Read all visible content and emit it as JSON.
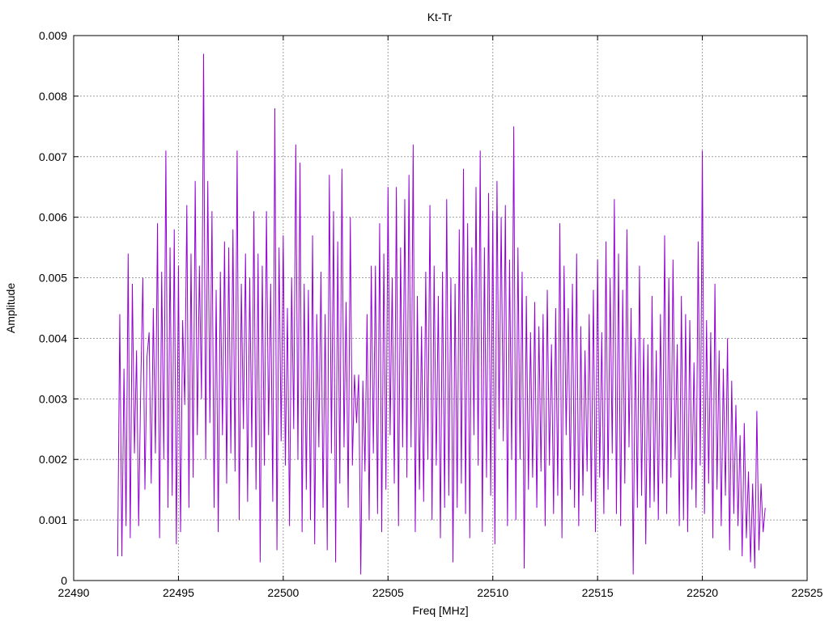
{
  "chart_data": {
    "type": "line",
    "title": "Kt-Tr",
    "xlabel": "Freq [MHz]",
    "ylabel": "Amplitude",
    "xlim": [
      22490,
      22525
    ],
    "ylim": [
      0,
      0.009
    ],
    "grid": true,
    "x_ticks": [
      "22490",
      "22495",
      "22500",
      "22505",
      "22510",
      "22515",
      "22520",
      "22525"
    ],
    "y_ticks": [
      "0",
      "0.001",
      "0.002",
      "0.003",
      "0.004",
      "0.005",
      "0.006",
      "0.007",
      "0.008",
      "0.009"
    ],
    "series": [
      {
        "color": "#9400d3",
        "x_start": 22492.1,
        "x_step": 0.1,
        "values": [
          0.0004,
          0.0044,
          0.0004,
          0.0035,
          0.0009,
          0.0054,
          0.0007,
          0.0049,
          0.0021,
          0.0038,
          0.0009,
          0.0032,
          0.005,
          0.0015,
          0.0037,
          0.0041,
          0.0016,
          0.0045,
          0.0021,
          0.0059,
          0.0007,
          0.0051,
          0.002,
          0.0071,
          0.0012,
          0.0055,
          0.0014,
          0.0058,
          0.0006,
          0.0052,
          0.0008,
          0.0043,
          0.0029,
          0.0062,
          0.0012,
          0.0054,
          0.0017,
          0.0066,
          0.0024,
          0.0052,
          0.003,
          0.0087,
          0.002,
          0.0066,
          0.0026,
          0.0061,
          0.0012,
          0.0048,
          0.0008,
          0.0051,
          0.0024,
          0.0056,
          0.0016,
          0.0055,
          0.0021,
          0.0058,
          0.0018,
          0.0071,
          0.001,
          0.0049,
          0.0025,
          0.0054,
          0.0013,
          0.005,
          0.0022,
          0.0061,
          0.0015,
          0.0054,
          0.0003,
          0.0052,
          0.0019,
          0.0061,
          0.0024,
          0.0049,
          0.0013,
          0.0078,
          0.0005,
          0.0055,
          0.0023,
          0.0057,
          0.0019,
          0.0045,
          0.0009,
          0.005,
          0.0025,
          0.0072,
          0.002,
          0.0069,
          0.0008,
          0.0049,
          0.0015,
          0.0048,
          0.001,
          0.0057,
          0.0006,
          0.0044,
          0.0022,
          0.0051,
          0.0012,
          0.0044,
          0.0005,
          0.0067,
          0.0021,
          0.0061,
          0.0003,
          0.0056,
          0.0016,
          0.0068,
          0.0022,
          0.0046,
          0.0012,
          0.006,
          0.0019,
          0.0034,
          0.0026,
          0.0034,
          0.0001,
          0.0033,
          0.0018,
          0.0044,
          0.001,
          0.0052,
          0.0021,
          0.0052,
          0.0011,
          0.0059,
          0.0008,
          0.0054,
          0.0015,
          0.0065,
          0.0024,
          0.005,
          0.0016,
          0.0065,
          0.0009,
          0.0055,
          0.0022,
          0.0063,
          0.0017,
          0.0067,
          0.0022,
          0.0072,
          0.0008,
          0.0047,
          0.0015,
          0.0042,
          0.0013,
          0.0051,
          0.002,
          0.0062,
          0.001,
          0.0052,
          0.0019,
          0.0047,
          0.0007,
          0.0051,
          0.0012,
          0.0063,
          0.0014,
          0.005,
          0.0003,
          0.0049,
          0.0012,
          0.0058,
          0.0016,
          0.0068,
          0.0011,
          0.0059,
          0.0007,
          0.0055,
          0.0024,
          0.0065,
          0.0019,
          0.0071,
          0.0008,
          0.0055,
          0.0017,
          0.0064,
          0.0014,
          0.0061,
          0.0006,
          0.0066,
          0.0025,
          0.006,
          0.0023,
          0.0062,
          0.0009,
          0.0053,
          0.002,
          0.0075,
          0.001,
          0.0055,
          0.002,
          0.0051,
          0.0002,
          0.0047,
          0.0015,
          0.0041,
          0.0017,
          0.0046,
          0.0012,
          0.0042,
          0.0018,
          0.0044,
          0.0009,
          0.0048,
          0.0019,
          0.0039,
          0.0011,
          0.0045,
          0.0014,
          0.0059,
          0.0007,
          0.0052,
          0.0024,
          0.0045,
          0.0015,
          0.0049,
          0.0012,
          0.0054,
          0.0009,
          0.0042,
          0.0014,
          0.0038,
          0.0018,
          0.0044,
          0.0013,
          0.0048,
          0.0008,
          0.0053,
          0.0017,
          0.0041,
          0.0011,
          0.0056,
          0.0015,
          0.005,
          0.0021,
          0.0063,
          0.0011,
          0.0054,
          0.0009,
          0.0048,
          0.0016,
          0.0058,
          0.0022,
          0.0045,
          0.0001,
          0.004,
          0.0012,
          0.0052,
          0.0014,
          0.004,
          0.0006,
          0.0039,
          0.0012,
          0.0047,
          0.0013,
          0.0038,
          0.001,
          0.0044,
          0.0016,
          0.0057,
          0.0011,
          0.005,
          0.0017,
          0.0053,
          0.002,
          0.0039,
          0.0009,
          0.0047,
          0.001,
          0.0044,
          0.0008,
          0.0043,
          0.0015,
          0.0036,
          0.0012,
          0.0056,
          0.0019,
          0.0071,
          0.0011,
          0.0043,
          0.0016,
          0.0041,
          0.0007,
          0.0049,
          0.0015,
          0.0038,
          0.0009,
          0.0035,
          0.0014,
          0.004,
          0.0005,
          0.0033,
          0.0011,
          0.0029,
          0.0009,
          0.0024,
          0.0004,
          0.0026,
          0.0007,
          0.0018,
          0.0003,
          0.0016,
          0.0002,
          0.0028,
          0.0005,
          0.0016,
          0.0008,
          0.0012
        ]
      }
    ]
  }
}
